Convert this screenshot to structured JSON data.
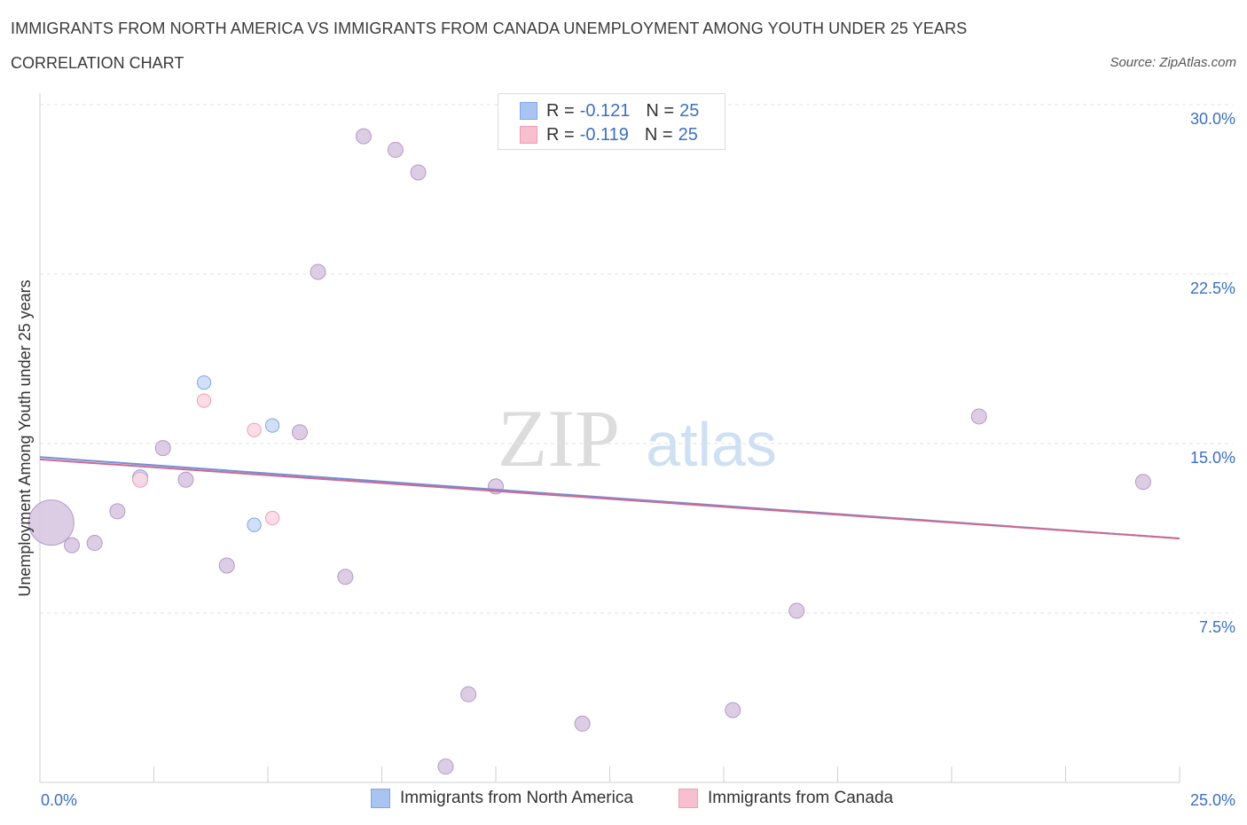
{
  "title": "IMMIGRANTS FROM NORTH AMERICA VS IMMIGRANTS FROM CANADA UNEMPLOYMENT AMONG YOUTH UNDER 25 YEARS",
  "subtitle": "CORRELATION CHART",
  "source": "Source: ZipAtlas.com",
  "watermark": {
    "zip": "ZIP",
    "atlas": "atlas"
  },
  "legend_stats": [
    {
      "r_label": "R =",
      "r_value": "-0.121",
      "n_label": "N =",
      "n_value": "25",
      "color": "#a9c4f0",
      "border": "#7ea6e6"
    },
    {
      "r_label": "R =",
      "r_value": "-0.119",
      "n_label": "N =",
      "n_value": "25",
      "color": "#f7bfd0",
      "border": "#ef9db6"
    }
  ],
  "bottom_legend": [
    {
      "label": "Immigrants from North America",
      "color": "#a9c4f0",
      "border": "#7ea6e6"
    },
    {
      "label": "Immigrants from Canada",
      "color": "#f7bfd0",
      "border": "#ef9db6"
    }
  ],
  "chart_data": {
    "type": "scatter",
    "ylabel": "Unemployment Among Youth under 25 years",
    "xlim": [
      0,
      25
    ],
    "ylim": [
      0,
      30
    ],
    "x_tick_labels": [
      "0.0%",
      "25.0%"
    ],
    "y_tick_labels": [
      "7.5%",
      "15.0%",
      "22.5%",
      "30.0%"
    ],
    "y_ticks": [
      7.5,
      15.0,
      22.5,
      30.0
    ],
    "grid": true,
    "colors": {
      "north_america": "#7ea6e6",
      "canada": "#ef9db6",
      "overlap": "#d6c4e0",
      "trend": "#d0688f",
      "axis_label": "#3a6fc4"
    },
    "series": [
      {
        "name": "Immigrants from North America",
        "points": [
          [
            0.25,
            11.5,
            3
          ],
          [
            0.7,
            10.5,
            1
          ],
          [
            1.2,
            10.6,
            1
          ],
          [
            1.7,
            12.0,
            1
          ],
          [
            2.2,
            13.5,
            1
          ],
          [
            2.7,
            14.8,
            1
          ],
          [
            3.2,
            13.4,
            1
          ],
          [
            3.6,
            17.7,
            0.9
          ],
          [
            4.1,
            9.6,
            1
          ],
          [
            4.7,
            11.4,
            0.9
          ],
          [
            5.1,
            15.8,
            0.9
          ],
          [
            5.7,
            15.5,
            1
          ],
          [
            6.1,
            22.6,
            1
          ],
          [
            6.7,
            9.1,
            1
          ],
          [
            7.1,
            28.6,
            1
          ],
          [
            7.8,
            28.0,
            1
          ],
          [
            8.3,
            27.0,
            1
          ],
          [
            8.9,
            0.7,
            1
          ],
          [
            9.4,
            3.9,
            1
          ],
          [
            10.0,
            13.1,
            1
          ],
          [
            11.9,
            2.6,
            1
          ],
          [
            15.2,
            3.2,
            1
          ],
          [
            16.6,
            7.6,
            1
          ],
          [
            20.6,
            16.2,
            1
          ],
          [
            24.2,
            13.3,
            1
          ]
        ],
        "trend": {
          "x": [
            0,
            25
          ],
          "y": [
            14.4,
            10.8
          ]
        }
      },
      {
        "name": "Immigrants from Canada",
        "points": [
          [
            0.25,
            11.5,
            3
          ],
          [
            0.7,
            10.5,
            1
          ],
          [
            1.2,
            10.6,
            1
          ],
          [
            1.7,
            12.0,
            1
          ],
          [
            2.2,
            13.4,
            1
          ],
          [
            2.7,
            14.8,
            1
          ],
          [
            3.2,
            13.4,
            1
          ],
          [
            3.6,
            16.9,
            0.9
          ],
          [
            4.1,
            9.6,
            1
          ],
          [
            4.7,
            15.6,
            0.9
          ],
          [
            5.1,
            11.7,
            0.9
          ],
          [
            5.7,
            15.5,
            1
          ],
          [
            6.1,
            22.6,
            1
          ],
          [
            6.7,
            9.1,
            1
          ],
          [
            7.1,
            28.6,
            1
          ],
          [
            7.8,
            28.0,
            1
          ],
          [
            8.3,
            27.0,
            1
          ],
          [
            8.9,
            0.7,
            1
          ],
          [
            9.4,
            3.9,
            1
          ],
          [
            10.0,
            13.1,
            1
          ],
          [
            11.9,
            2.6,
            1
          ],
          [
            15.2,
            3.2,
            1
          ],
          [
            16.6,
            7.6,
            1
          ],
          [
            20.6,
            16.2,
            1
          ],
          [
            24.2,
            13.3,
            1
          ]
        ],
        "trend": {
          "x": [
            0,
            25
          ],
          "y": [
            14.3,
            10.8
          ]
        }
      }
    ]
  }
}
